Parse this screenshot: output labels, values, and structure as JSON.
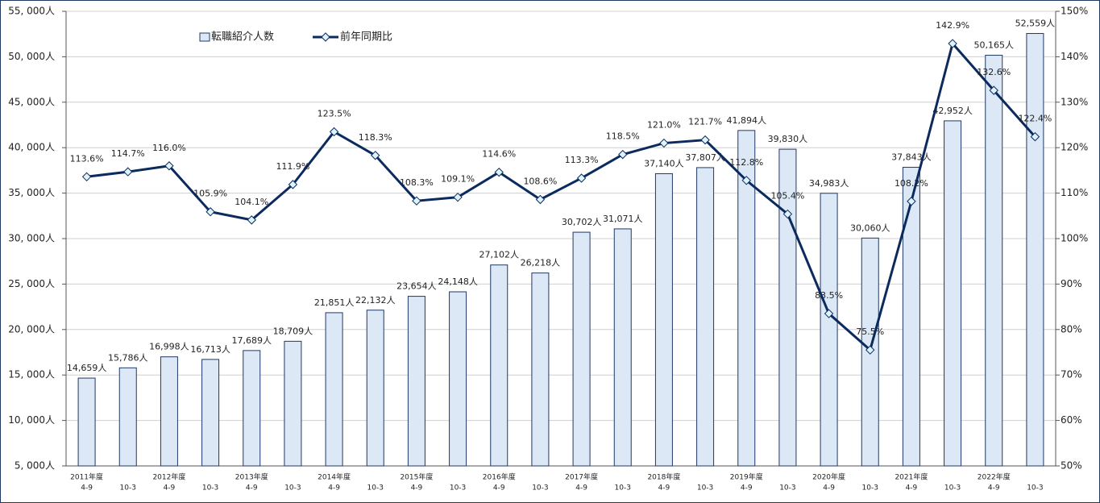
{
  "chart_data": {
    "type": "combo",
    "categories": [
      [
        "2011年度",
        "4-9"
      ],
      [
        "10-3"
      ],
      [
        "2012年度",
        "4-9"
      ],
      [
        "10-3"
      ],
      [
        "2013年度",
        "4-9"
      ],
      [
        "10-3"
      ],
      [
        "2014年度",
        "4-9"
      ],
      [
        "10-3"
      ],
      [
        "2015年度",
        "4-9"
      ],
      [
        "10-3"
      ],
      [
        "2016年度",
        "4-9"
      ],
      [
        "10-3"
      ],
      [
        "2017年度",
        "4-9"
      ],
      [
        "10-3"
      ],
      [
        "2018年度",
        "4-9"
      ],
      [
        "10-3"
      ],
      [
        "2019年度",
        "4-9"
      ],
      [
        "10-3"
      ],
      [
        "2020年度",
        "4-9"
      ],
      [
        "10-3"
      ],
      [
        "2021年度",
        "4-9"
      ],
      [
        "10-3"
      ],
      [
        "2022年度",
        "4-9"
      ],
      [
        "10-3"
      ]
    ],
    "series": [
      {
        "name": "転職紹介人数",
        "type": "bar",
        "color": "#dce8f5",
        "stroke": "#1f3864",
        "values": [
          14659,
          15786,
          16998,
          16713,
          17689,
          18709,
          21851,
          22132,
          23654,
          24148,
          27102,
          26218,
          30702,
          31071,
          37140,
          37807,
          41894,
          39830,
          34983,
          30060,
          37843,
          42952,
          50165,
          52559
        ],
        "value_labels": [
          "14,659人",
          "15,786人",
          "16,998人",
          "16,713人",
          "17,689人",
          "18,709人",
          "21,851人",
          "22,132人",
          "23,654人",
          "24,148人",
          "27,102人",
          "26,218人",
          "30,702人",
          "31,071人",
          "37,140人",
          "37,807人",
          "41,894人",
          "39,830人",
          "34,983人",
          "30,060人",
          "37,843人",
          "42,952人",
          "50,165人",
          "52,559人"
        ]
      },
      {
        "name": "前年同期比",
        "type": "line",
        "axis": "y2",
        "color": "#0b2a5e",
        "marker_color": "#dff3fb",
        "values": [
          113.6,
          114.7,
          116.0,
          105.9,
          104.1,
          111.9,
          123.5,
          118.3,
          108.3,
          109.1,
          114.6,
          108.6,
          113.3,
          118.5,
          121.0,
          121.7,
          112.8,
          105.4,
          83.5,
          75.5,
          108.2,
          142.9,
          132.6,
          122.4
        ],
        "value_labels": [
          "113.6%",
          "114.7%",
          "116.0%",
          "105.9%",
          "104.1%",
          "111.9%",
          "123.5%",
          "118.3%",
          "108.3%",
          "109.1%",
          "114.6%",
          "108.6%",
          "113.3%",
          "118.5%",
          "121.0%",
          "121.7%",
          "112.8%",
          "105.4%",
          "83.5%",
          "75.5%",
          "108.2%",
          "142.9%",
          "132.6%",
          "122.4%"
        ]
      }
    ],
    "ylim": [
      5000,
      55000
    ],
    "yticks": [
      {
        "value": 5000,
        "label": "5, 000人"
      },
      {
        "value": 10000,
        "label": "10, 000人"
      },
      {
        "value": 15000,
        "label": "15, 000人"
      },
      {
        "value": 20000,
        "label": "20, 000人"
      },
      {
        "value": 25000,
        "label": "25, 000人"
      },
      {
        "value": 30000,
        "label": "30, 000人"
      },
      {
        "value": 35000,
        "label": "35, 000人"
      },
      {
        "value": 40000,
        "label": "40, 000人"
      },
      {
        "value": 45000,
        "label": "45, 000人"
      },
      {
        "value": 50000,
        "label": "50, 000人"
      },
      {
        "value": 55000,
        "label": "55, 000人"
      }
    ],
    "y2lim": [
      50,
      150
    ],
    "y2ticks": [
      {
        "value": 50,
        "label": "50%"
      },
      {
        "value": 60,
        "label": "60%"
      },
      {
        "value": 70,
        "label": "70%"
      },
      {
        "value": 80,
        "label": "80%"
      },
      {
        "value": 90,
        "label": "90%"
      },
      {
        "value": 100,
        "label": "100%"
      },
      {
        "value": 110,
        "label": "110%"
      },
      {
        "value": 120,
        "label": "120%"
      },
      {
        "value": 130,
        "label": "130%"
      },
      {
        "value": 140,
        "label": "140%"
      },
      {
        "value": 150,
        "label": "150%"
      }
    ],
    "grid": true
  }
}
